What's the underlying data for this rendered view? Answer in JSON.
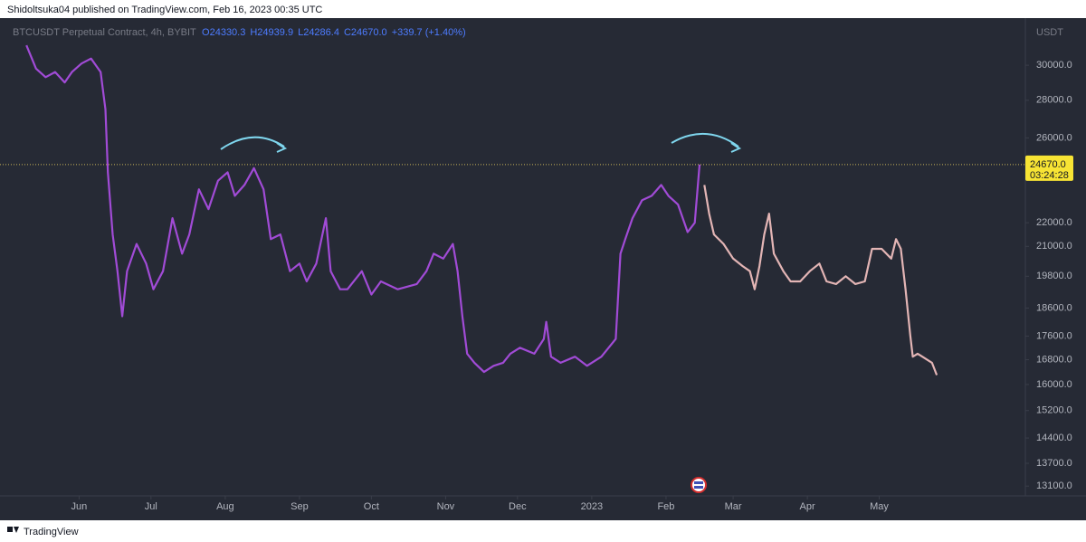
{
  "header": {
    "published": "Shidoltsuka04 published on TradingView.com, Feb 16, 2023 00:35 UTC"
  },
  "footer": {
    "brand": "TradingView"
  },
  "chart_data": {
    "type": "line",
    "symbol": "BTCUSDT Perpetual Contract, 4h, BYBIT",
    "ohlc": {
      "open": "O24330.3",
      "high": "H24939.9",
      "low": "L24286.4",
      "close": "C24670.0",
      "change": "+339.7 (+1.40%)"
    },
    "y_unit": "USDT",
    "last_price": {
      "value": 24670,
      "label": "24670.0"
    },
    "countdown": "03:24:28",
    "log_scale": true,
    "background": "#262a35",
    "xlim": [
      -30,
      395
    ],
    "ylim": [
      12850,
      32800
    ],
    "xticks": [
      {
        "value": 0,
        "label": "Jun"
      },
      {
        "value": 30,
        "label": "Jul"
      },
      {
        "value": 61,
        "label": "Aug"
      },
      {
        "value": 92,
        "label": "Sep"
      },
      {
        "value": 122,
        "label": "Oct"
      },
      {
        "value": 153,
        "label": "Nov"
      },
      {
        "value": 183,
        "label": "Dec"
      },
      {
        "value": 214,
        "label": "2023"
      },
      {
        "value": 245,
        "label": "Feb"
      },
      {
        "value": 273,
        "label": "Mar"
      },
      {
        "value": 304,
        "label": "Apr"
      },
      {
        "value": 334,
        "label": "May"
      }
    ],
    "yticks": [
      {
        "value": 30000,
        "label": "30000.0"
      },
      {
        "value": 28000,
        "label": "28000.0"
      },
      {
        "value": 26000,
        "label": "26000.0"
      },
      {
        "value": 22000,
        "label": "22000.0"
      },
      {
        "value": 21000,
        "label": "21000.0"
      },
      {
        "value": 19800,
        "label": "19800.0"
      },
      {
        "value": 18600,
        "label": "18600.0"
      },
      {
        "value": 17600,
        "label": "17600.0"
      },
      {
        "value": 16800,
        "label": "16800.0"
      },
      {
        "value": 16000,
        "label": "16000.0"
      },
      {
        "value": 15200,
        "label": "15200.0"
      },
      {
        "value": 14400,
        "label": "14400.0"
      },
      {
        "value": 13700,
        "label": "13700.0"
      },
      {
        "value": 13100,
        "label": "13100.0"
      }
    ],
    "series": [
      {
        "color": "#a14bd6",
        "x": [
          -22,
          -18,
          -14,
          -10,
          -6,
          -3,
          1,
          5,
          9,
          11,
          12,
          14,
          16,
          18,
          20,
          24,
          28,
          31,
          35,
          39,
          43,
          46,
          50,
          54,
          58,
          62,
          65,
          69,
          73,
          77,
          80,
          84,
          88,
          92,
          95,
          99,
          103,
          105,
          109,
          112,
          118,
          122,
          126,
          133,
          141,
          145,
          148,
          152,
          156,
          158,
          160,
          162,
          165,
          169,
          173,
          177,
          180,
          184,
          190,
          194,
          195,
          197,
          201,
          207,
          212,
          218,
          224,
          226,
          228,
          231,
          235,
          239,
          243,
          246,
          250,
          254,
          257,
          259
        ],
        "values": [
          31200,
          29800,
          29300,
          29600,
          29000,
          29600,
          30100,
          30400,
          29600,
          27500,
          24300,
          21500,
          20000,
          18300,
          20000,
          21100,
          20300,
          19300,
          20000,
          22200,
          20700,
          21500,
          23500,
          22600,
          23900,
          24300,
          23200,
          23700,
          24500,
          23500,
          21300,
          21500,
          20000,
          20300,
          19600,
          20300,
          22200,
          20000,
          19300,
          19300,
          20000,
          19100,
          19600,
          19300,
          19500,
          20000,
          20700,
          20500,
          21100,
          20000,
          18300,
          17000,
          16700,
          16400,
          16600,
          16700,
          17000,
          17200,
          17000,
          17500,
          18100,
          16900,
          16700,
          16900,
          16600,
          16900,
          17500,
          20700,
          21300,
          22200,
          23000,
          23200,
          23700,
          23200,
          22800,
          21600,
          22000,
          24670
        ]
      },
      {
        "color": "#e3b5b5",
        "x": [
          261,
          263,
          265,
          269,
          273,
          277,
          280,
          282,
          284,
          286,
          288,
          290,
          294,
          297,
          301,
          305,
          309,
          312,
          316,
          320,
          324,
          328,
          331,
          335,
          339,
          341,
          343,
          345,
          347,
          348,
          350,
          352,
          356,
          358
        ],
        "values": [
          23700,
          22400,
          21500,
          21100,
          20500,
          20200,
          20000,
          19300,
          20200,
          21500,
          22400,
          20700,
          20000,
          19600,
          19600,
          20000,
          20300,
          19600,
          19500,
          19800,
          19500,
          19600,
          20900,
          20900,
          20500,
          21300,
          20900,
          19300,
          17600,
          16900,
          17000,
          16900,
          16700,
          16300
        ]
      }
    ]
  }
}
